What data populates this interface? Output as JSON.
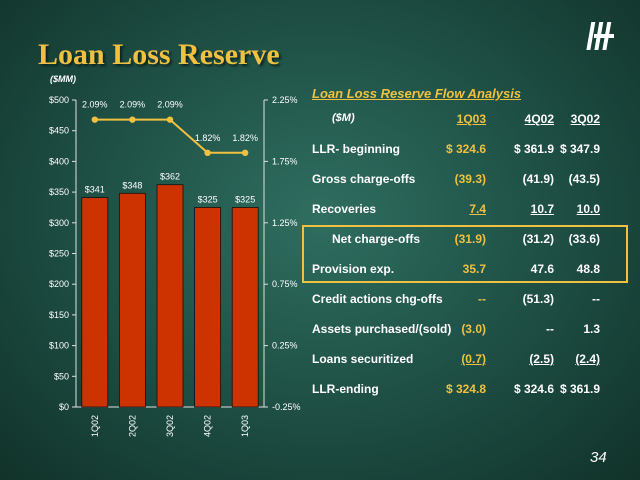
{
  "slide": {
    "title": "Loan Loss Reserve",
    "page_number": "34"
  },
  "colors": {
    "title": "#f0c040",
    "bar": "#cc3300",
    "line": "#f0c040",
    "text": "#ffffff"
  },
  "chart_data": {
    "type": "bar",
    "unit_label": "($MM)",
    "categories": [
      "1Q02",
      "2Q02",
      "3Q02",
      "4Q02",
      "1Q03"
    ],
    "series": [
      {
        "values": [
          341,
          348,
          362,
          325,
          325
        ],
        "labels": [
          "$341",
          "$348",
          "$362",
          "$325",
          "$325"
        ],
        "axis": "left"
      },
      {
        "type": "line",
        "values": [
          2.09,
          2.09,
          2.09,
          1.82,
          1.82
        ],
        "labels": [
          "2.09%",
          "2.09%",
          "2.09%",
          "1.82%",
          "1.82%"
        ],
        "axis": "right"
      }
    ],
    "ylim": [
      0,
      500
    ],
    "y_ticks": [
      "$0",
      "$50",
      "$100",
      "$150",
      "$200",
      "$250",
      "$300",
      "$350",
      "$400",
      "$450",
      "$500"
    ],
    "y2lim": [
      -0.25,
      2.25
    ],
    "y2_ticks": [
      "-0.25%",
      "0.25%",
      "0.75%",
      "1.25%",
      "1.75%",
      "2.25%"
    ],
    "grid": false
  },
  "flow": {
    "title": "Loan Loss Reserve Flow Analysis",
    "header": {
      "unit": "($M)",
      "c1": "1Q03",
      "c2": "4Q02",
      "c3": "3Q02"
    },
    "rows": [
      {
        "label": "LLR- beginning",
        "c1": "$ 324.6",
        "c2": "$ 361.9",
        "c3": "$ 347.9"
      },
      {
        "label": "Gross charge-offs",
        "c1": "(39.3)",
        "c2": "(41.9)",
        "c3": "(43.5)"
      },
      {
        "label": "Recoveries",
        "c1": "7.4",
        "c2": "10.7",
        "c3": "10.0"
      },
      {
        "label": "Net charge-offs",
        "c1": "(31.9)",
        "c2": "(31.2)",
        "c3": "(33.6)"
      },
      {
        "label": "Provision exp.",
        "c1": "35.7",
        "c2": "47.6",
        "c3": "48.8"
      },
      {
        "label": "Credit actions chg-offs",
        "c1": "--",
        "c2": "(51.3)",
        "c3": "--"
      },
      {
        "label": "Assets purchased/(sold)",
        "c1": "(3.0)",
        "c2": "--",
        "c3": "1.3"
      },
      {
        "label": "Loans securitized",
        "c1": "(0.7)",
        "c2": "(2.5)",
        "c3": "(2.4)"
      },
      {
        "label": "LLR-ending",
        "c1": "$ 324.8",
        "c2": "$ 324.6",
        "c3": "$ 361.9"
      }
    ]
  }
}
